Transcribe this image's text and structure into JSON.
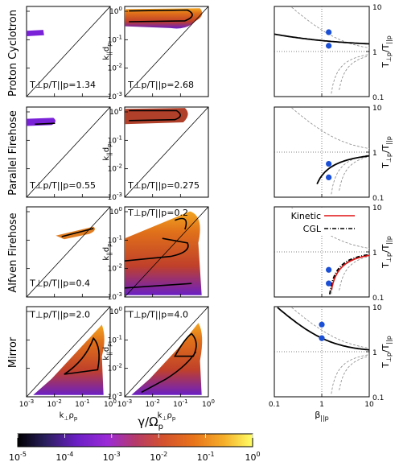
{
  "figure": {
    "row_labels": [
      "Proton Cyclotron",
      "Parallel Firehose",
      "Alfven Firehose",
      "Mirror"
    ],
    "colorbar_label": "γ/Ω",
    "colorbar_label_sub": "p",
    "colorbar_ticks": [
      {
        "base": "10",
        "exp": "-5"
      },
      {
        "base": "10",
        "exp": "-4"
      },
      {
        "base": "10",
        "exp": "-3"
      },
      {
        "base": "10",
        "exp": "-2"
      },
      {
        "base": "10",
        "exp": "-1"
      },
      {
        "base": "10",
        "exp": "0"
      }
    ],
    "colorbar_colors": [
      "#000000",
      "#2a1f5e",
      "#5b1ea8",
      "#8a2be2",
      "#b0337a",
      "#d4522d",
      "#e8741a",
      "#f29b1e",
      "#f8c93a",
      "#ffff66"
    ],
    "growth_ylabel": "k",
    "growth_ylabel_sub": "||",
    "growth_ylabel_tail": "d",
    "growth_ylabel_tail_sub": "p",
    "growth_xlabel": "k",
    "growth_xlabel_sub": "⊥",
    "growth_xlabel_tail": "ρ",
    "growth_xlabel_tail_sub": "p",
    "growth_ticks": [
      {
        "base": "10",
        "exp": "-3"
      },
      {
        "base": "10",
        "exp": "-2"
      },
      {
        "base": "10",
        "exp": "-1"
      },
      {
        "base": "10",
        "exp": "0"
      }
    ],
    "beta_xlabel": "β",
    "beta_xlabel_sub": "||p",
    "beta_xticks": [
      "0.1",
      "1",
      "10"
    ],
    "aniso_label": "T",
    "aniso_yticks": [
      "10",
      "1",
      "0.1"
    ],
    "legend": {
      "kinetic": "Kinetic",
      "cgl": "CGL"
    }
  },
  "chart_data": [
    {
      "type": "heatmap",
      "row": "Proton Cyclotron",
      "panel": "left",
      "annotation": "T⊥p/T||p=1.34",
      "xlim": [
        0.001,
        1
      ],
      "ylim": [
        0.001,
        1.5
      ],
      "xscale": "log",
      "yscale": "log"
    },
    {
      "type": "heatmap",
      "row": "Proton Cyclotron",
      "panel": "middle",
      "annotation": "T⊥p/T||p=2.68",
      "xlim": [
        0.001,
        1
      ],
      "ylim": [
        0.001,
        1.5
      ],
      "xscale": "log",
      "yscale": "log"
    },
    {
      "type": "line",
      "row": "Proton Cyclotron",
      "panel": "right",
      "xlim": [
        0.1,
        10
      ],
      "ylim": [
        0.1,
        10
      ],
      "xscale": "log",
      "yscale": "log",
      "points": [
        {
          "beta": 1.4,
          "T_ratio": 2.68
        },
        {
          "beta": 1.4,
          "T_ratio": 1.34
        }
      ]
    },
    {
      "type": "heatmap",
      "row": "Parallel Firehose",
      "panel": "left",
      "annotation": "T⊥p/T||p=0.55",
      "xlim": [
        0.001,
        1
      ],
      "ylim": [
        0.001,
        1.5
      ],
      "xscale": "log",
      "yscale": "log"
    },
    {
      "type": "heatmap",
      "row": "Parallel Firehose",
      "panel": "middle",
      "annotation": "T⊥p/T||p=0.275",
      "xlim": [
        0.001,
        1
      ],
      "ylim": [
        0.001,
        1.5
      ],
      "xscale": "log",
      "yscale": "log"
    },
    {
      "type": "line",
      "row": "Parallel Firehose",
      "panel": "right",
      "xlim": [
        0.1,
        10
      ],
      "ylim": [
        0.1,
        10
      ],
      "xscale": "log",
      "yscale": "log",
      "points": [
        {
          "beta": 1.4,
          "T_ratio": 0.55
        },
        {
          "beta": 1.4,
          "T_ratio": 0.275
        }
      ]
    },
    {
      "type": "heatmap",
      "row": "Alfven Firehose",
      "panel": "left",
      "annotation": "T⊥p/T||p=0.4",
      "xlim": [
        0.001,
        1
      ],
      "ylim": [
        0.001,
        1.5
      ],
      "xscale": "log",
      "yscale": "log"
    },
    {
      "type": "heatmap",
      "row": "Alfven Firehose",
      "panel": "middle",
      "annotation": "T⊥p/T||p=0.2",
      "xlim": [
        0.001,
        1
      ],
      "ylim": [
        0.001,
        1.5
      ],
      "xscale": "log",
      "yscale": "log"
    },
    {
      "type": "line",
      "row": "Alfven Firehose",
      "panel": "right",
      "xlim": [
        0.1,
        10
      ],
      "ylim": [
        0.1,
        10
      ],
      "xscale": "log",
      "yscale": "log",
      "series": [
        "Kinetic",
        "CGL"
      ],
      "points": [
        {
          "beta": 1.4,
          "T_ratio": 0.4
        },
        {
          "beta": 1.4,
          "T_ratio": 0.2
        }
      ]
    },
    {
      "type": "heatmap",
      "row": "Mirror",
      "panel": "left",
      "annotation": "T⊥p/T||p=2.0",
      "xlim": [
        0.001,
        1
      ],
      "ylim": [
        0.001,
        1.5
      ],
      "xscale": "log",
      "yscale": "log"
    },
    {
      "type": "heatmap",
      "row": "Mirror",
      "panel": "middle",
      "annotation": "T⊥p/T||p=4.0",
      "xlim": [
        0.001,
        1
      ],
      "ylim": [
        0.001,
        1.5
      ],
      "xscale": "log",
      "yscale": "log"
    },
    {
      "type": "line",
      "row": "Mirror",
      "panel": "right",
      "xlim": [
        0.1,
        10
      ],
      "ylim": [
        0.1,
        10
      ],
      "xscale": "log",
      "yscale": "log",
      "points": [
        {
          "beta": 1.0,
          "T_ratio": 4.0
        },
        {
          "beta": 1.0,
          "T_ratio": 2.0
        }
      ]
    }
  ]
}
